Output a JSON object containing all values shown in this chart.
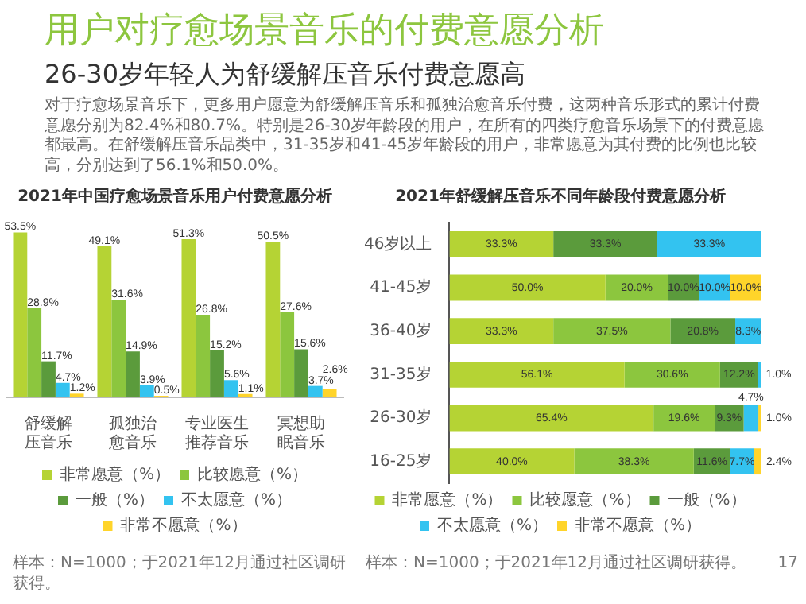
{
  "chart_data": [
    {
      "type": "other",
      "title": "用户对疗愈场景音乐的付费意愿分析",
      "subtitle": "26-30岁年轻人为舒缓解压音乐付费意愿高",
      "annotations": [
        "对于疗愈场景音乐下，更多用户愿意为舒缓解压音乐和孤独治愈音乐付费，这两种音乐形式的累计付费意愿分别为82.4%和80.7%。特别是26-30岁年龄段的用户，在所有的四类疗愈音乐场景下的付费意愿都最高。在舒缓解压音乐品类中，31-35岁和41-45岁年龄段的用户，非常愿意为其付费的比例也比较高，分别达到了56.1%和50.0%。"
      ]
    },
    {
      "type": "bar",
      "title": "2021年中国疗愈场景音乐用户付费意愿分析",
      "categories": [
        "舒缓解压音乐",
        "孤独治愈音乐",
        "专业医生推荐音乐",
        "冥想助眠音乐"
      ],
      "series": [
        {
          "name": "非常愿意（%）",
          "color": "#b5d334",
          "values": [
            53.5,
            49.1,
            51.3,
            50.5
          ],
          "value_labels": [
            "53.5%",
            "49.1%",
            "51.3%",
            "50.5%"
          ]
        },
        {
          "name": "比较愿意（%）",
          "color": "#8cc63e",
          "values": [
            28.9,
            31.6,
            26.8,
            27.6
          ],
          "value_labels": [
            "28.9%",
            "31.6%",
            "26.8%",
            "27.6%"
          ]
        },
        {
          "name": "一般（%）",
          "color": "#5b9b3c",
          "values": [
            11.7,
            14.9,
            15.2,
            15.6
          ],
          "value_labels": [
            "11.7%",
            "14.9%",
            "15.2%",
            "15.6%"
          ]
        },
        {
          "name": "不太愿意（%）",
          "color": "#33c3f0",
          "values": [
            4.7,
            3.9,
            5.6,
            3.7
          ],
          "value_labels": [
            "4.7%",
            "3.9%",
            "5.6%",
            "3.7%"
          ]
        },
        {
          "name": "非常不愿意（%）",
          "color": "#ffd42a",
          "values": [
            1.2,
            0.5,
            1.1,
            2.6
          ],
          "value_labels": [
            "1.2%",
            "0.5%",
            "1.1%",
            "2.6%"
          ]
        }
      ],
      "tick_labels": "x",
      "legend": "bottom",
      "annotations": [
        "样本：N=1000；于2021年12月通过社区调研获得。"
      ]
    },
    {
      "type": "bar",
      "orientation": "horizontal",
      "stacked": true,
      "title": "2021年舒缓解压音乐不同年龄段付费意愿分析",
      "categories": [
        "46岁以上",
        "41-45岁",
        "36-40岁",
        "31-35岁",
        "26-30岁",
        "16-25岁"
      ],
      "series": [
        {
          "name": "非常愿意（%）",
          "color": "#b5d334",
          "values": [
            33.3,
            50.0,
            33.3,
            56.1,
            65.4,
            40.0
          ],
          "value_labels": [
            "33.3%",
            "50.0%",
            "33.3%",
            "56.1%",
            "65.4%",
            "40.0%"
          ]
        },
        {
          "name": "比较愿意（%）",
          "color": "#8cc63e",
          "values": [
            null,
            20.0,
            37.5,
            30.6,
            19.6,
            38.3
          ],
          "value_labels": [
            null,
            "20.0%",
            "37.5%",
            "30.6%",
            "19.6%",
            "38.3%"
          ]
        },
        {
          "name": "一般（%）",
          "color": "#5b9b3c",
          "values": [
            33.3,
            10.0,
            20.8,
            12.2,
            9.3,
            11.6
          ],
          "value_labels": [
            "33.3%",
            "10.0%",
            "20.8%",
            "12.2%",
            "9.3%",
            "11.6%"
          ]
        },
        {
          "name": "不太愿意（%）",
          "color": "#33c3f0",
          "values": [
            33.3,
            10.0,
            8.3,
            1.0,
            4.7,
            7.7
          ],
          "value_labels": [
            "33.3%",
            "10.0%",
            "8.3%",
            "1.0%",
            "4.7%",
            "7.7%"
          ]
        },
        {
          "name": "非常不愿意（%）",
          "color": "#ffd42a",
          "values": [
            null,
            10.0,
            null,
            null,
            1.0,
            2.4
          ],
          "value_labels": [
            null,
            "10.0%",
            null,
            null,
            "1.0%",
            "2.4%"
          ]
        }
      ],
      "tick_labels": "y",
      "legend": "bottom",
      "annotations": [
        "样本：N=1000；于2021年12月通过社区调研获得。",
        "17"
      ]
    }
  ]
}
